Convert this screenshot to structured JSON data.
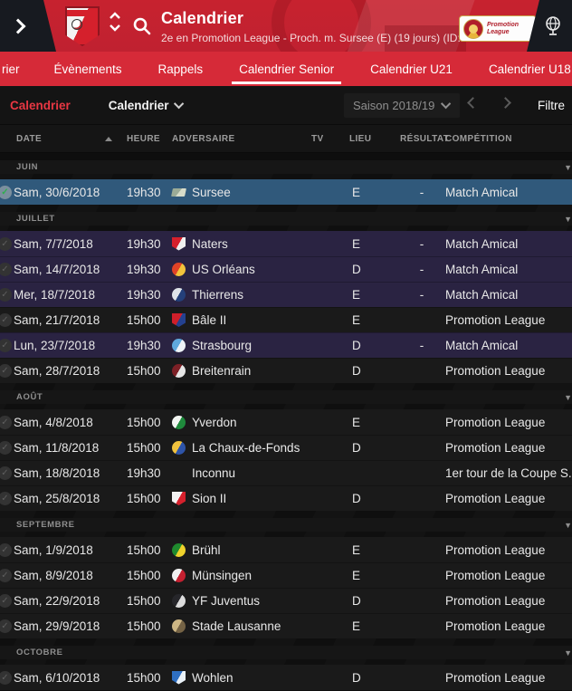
{
  "header": {
    "title": "Calendrier",
    "subtitle": "2e en Promotion League - Proch. m. Sursee (E) (19 jours) (ID:98...",
    "league_logo_line1": "Promotion",
    "league_logo_line2": "League"
  },
  "nav": {
    "tabs": [
      {
        "label": "rier",
        "active": false
      },
      {
        "label": "Évènements",
        "active": false
      },
      {
        "label": "Rappels",
        "active": false
      },
      {
        "label": "Calendrier Senior",
        "active": true
      },
      {
        "label": "Calendrier U21",
        "active": false
      },
      {
        "label": "Calendrier U18",
        "active": false
      }
    ]
  },
  "toolbar": {
    "page_label": "Calendrier",
    "view_label": "Calendrier",
    "season_label": "Saison 2018/19",
    "filter_label": "Filtre"
  },
  "table": {
    "columns": {
      "date": "DATE",
      "time": "HEURE",
      "opponent": "ADVERSAIRE",
      "tv": "TV",
      "venue": "LIEU",
      "result": "RÉSULTAT",
      "competition": "COMPÉTITION"
    },
    "collapse_icon": "▼▼"
  },
  "colors": {
    "accent_red": "#d62a38",
    "selected_row": "#30597b",
    "friendly_row": "#2a2342",
    "league_row": "#1a1a1a"
  },
  "sections": [
    {
      "month": "JUIN",
      "rows": [
        {
          "date": "Sam, 30/6/2018",
          "time": "19h30",
          "opponent": "Sursee",
          "tv": "",
          "venue": "E",
          "result": "-",
          "competition": "Match Amical",
          "type": "friendly",
          "selected": true,
          "badge": {
            "shape": "flag",
            "c1": "#9bab97",
            "c2": "#d7dcc9"
          }
        }
      ]
    },
    {
      "month": "JUILLET",
      "rows": [
        {
          "date": "Sam, 7/7/2018",
          "time": "19h30",
          "opponent": "Naters",
          "tv": "",
          "venue": "E",
          "result": "-",
          "competition": "Match Amical",
          "type": "friendly",
          "selected": false,
          "badge": {
            "shape": "shield",
            "c1": "#d5202c",
            "c2": "#f0f0f0"
          }
        },
        {
          "date": "Sam, 14/7/2018",
          "time": "19h30",
          "opponent": "US Orléans",
          "tv": "",
          "venue": "D",
          "result": "-",
          "competition": "Match Amical",
          "type": "friendly",
          "selected": false,
          "badge": {
            "shape": "circle",
            "c1": "#e04326",
            "c2": "#f2c43c"
          }
        },
        {
          "date": "Mer, 18/7/2018",
          "time": "19h30",
          "opponent": "Thierrens",
          "tv": "",
          "venue": "E",
          "result": "-",
          "competition": "Match Amical",
          "type": "friendly",
          "selected": false,
          "badge": {
            "shape": "circle",
            "c1": "#dfe3e8",
            "c2": "#24407a"
          }
        },
        {
          "date": "Sam, 21/7/2018",
          "time": "15h00",
          "opponent": "Bâle II",
          "tv": "",
          "venue": "E",
          "result": "",
          "competition": "Promotion League",
          "type": "league",
          "selected": false,
          "badge": {
            "shape": "shield",
            "c1": "#cf1f2a",
            "c2": "#24418f"
          }
        },
        {
          "date": "Lun, 23/7/2018",
          "time": "19h30",
          "opponent": "Strasbourg",
          "tv": "",
          "venue": "D",
          "result": "-",
          "competition": "Match Amical",
          "type": "friendly",
          "selected": false,
          "badge": {
            "shape": "circle",
            "c1": "#5fa9dc",
            "c2": "#eef3f7"
          }
        },
        {
          "date": "Sam, 28/7/2018",
          "time": "15h00",
          "opponent": "Breitenrain",
          "tv": "",
          "venue": "D",
          "result": "",
          "competition": "Promotion League",
          "type": "league",
          "selected": false,
          "badge": {
            "shape": "circle",
            "c1": "#7c2026",
            "c2": "#e6e6e6"
          }
        }
      ]
    },
    {
      "month": "AOÛT",
      "rows": [
        {
          "date": "Sam, 4/8/2018",
          "time": "15h00",
          "opponent": "Yverdon",
          "tv": "",
          "venue": "E",
          "result": "",
          "competition": "Promotion League",
          "type": "league",
          "selected": false,
          "badge": {
            "shape": "circle",
            "c1": "#f2f5f2",
            "c2": "#1f8a3c"
          }
        },
        {
          "date": "Sam, 11/8/2018",
          "time": "15h00",
          "opponent": "La Chaux-de-Fonds",
          "tv": "",
          "venue": "D",
          "result": "",
          "competition": "Promotion League",
          "type": "league",
          "selected": false,
          "badge": {
            "shape": "circle",
            "c1": "#f0c23e",
            "c2": "#2e54a8"
          }
        },
        {
          "date": "Sam, 18/8/2018",
          "time": "19h30",
          "opponent": "Inconnu",
          "tv": "",
          "venue": "",
          "result": "",
          "competition": "1er tour de la Coupe S...",
          "type": "cup",
          "selected": false,
          "badge": {
            "shape": "none",
            "c1": "",
            "c2": ""
          }
        },
        {
          "date": "Sam, 25/8/2018",
          "time": "15h00",
          "opponent": "Sion II",
          "tv": "",
          "venue": "D",
          "result": "",
          "competition": "Promotion League",
          "type": "league",
          "selected": false,
          "badge": {
            "shape": "shield",
            "c1": "#f2f2f2",
            "c2": "#d5202c"
          }
        }
      ]
    },
    {
      "month": "SEPTEMBRE",
      "rows": [
        {
          "date": "Sam, 1/9/2018",
          "time": "15h00",
          "opponent": "Brühl",
          "tv": "",
          "venue": "E",
          "result": "",
          "competition": "Promotion League",
          "type": "league",
          "selected": false,
          "badge": {
            "shape": "circle",
            "c1": "#1f8a2e",
            "c2": "#efd22c"
          }
        },
        {
          "date": "Sam, 8/9/2018",
          "time": "15h00",
          "opponent": "Münsingen",
          "tv": "",
          "venue": "E",
          "result": "",
          "competition": "Promotion League",
          "type": "league",
          "selected": false,
          "badge": {
            "shape": "circle",
            "c1": "#f0f0f0",
            "c2": "#c42030"
          }
        },
        {
          "date": "Sam, 22/9/2018",
          "time": "15h00",
          "opponent": "YF Juventus",
          "tv": "",
          "venue": "D",
          "result": "",
          "competition": "Promotion League",
          "type": "league",
          "selected": false,
          "badge": {
            "shape": "circle",
            "c1": "#26262a",
            "c2": "#dcdcdc"
          }
        },
        {
          "date": "Sam, 29/9/2018",
          "time": "15h00",
          "opponent": "Stade Lausanne",
          "tv": "",
          "venue": "E",
          "result": "",
          "competition": "Promotion League",
          "type": "league",
          "selected": false,
          "badge": {
            "shape": "circle",
            "c1": "#cdb684",
            "c2": "#756345"
          }
        }
      ]
    },
    {
      "month": "OCTOBRE",
      "rows": [
        {
          "date": "Sam, 6/10/2018",
          "time": "15h00",
          "opponent": "Wohlen",
          "tv": "",
          "venue": "D",
          "result": "",
          "competition": "Promotion League",
          "type": "league",
          "selected": false,
          "badge": {
            "shape": "shield",
            "c1": "#2e6fc2",
            "c2": "#eaf1f8"
          }
        }
      ]
    }
  ]
}
